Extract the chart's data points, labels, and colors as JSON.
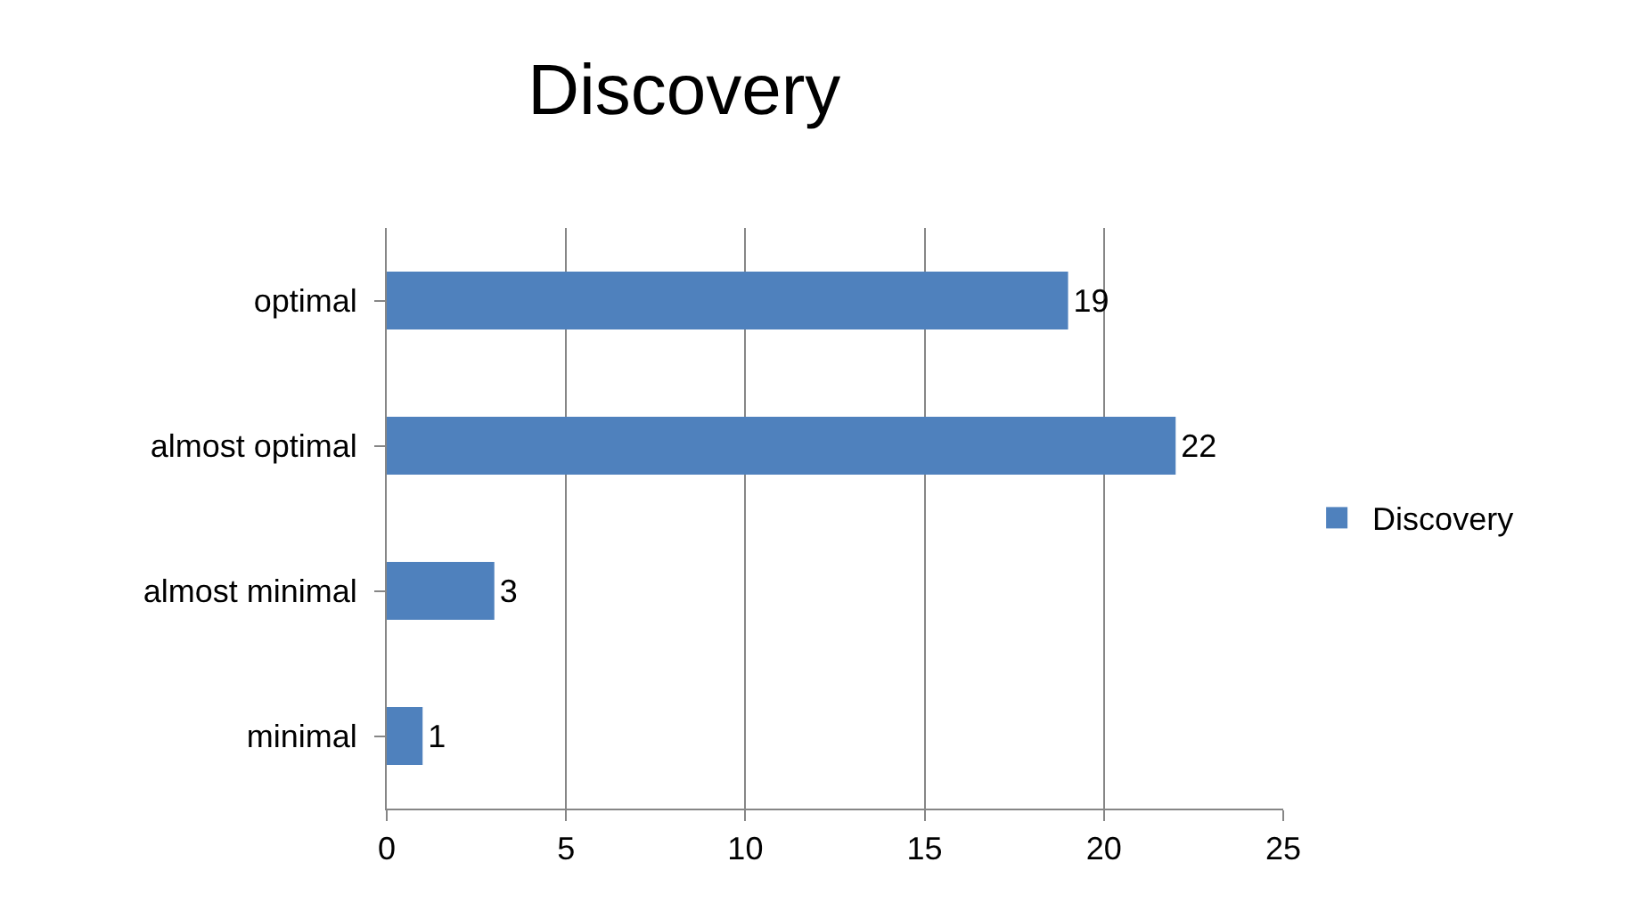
{
  "chart_data": {
    "type": "bar",
    "title": "Discovery",
    "orientation": "horizontal",
    "categories": [
      "optimal",
      "almost optimal",
      "almost minimal",
      "minimal"
    ],
    "series": [
      {
        "name": "Discovery",
        "color": "#4f81bd",
        "values": [
          19,
          22,
          3,
          1
        ]
      }
    ],
    "xlim": [
      0,
      25
    ],
    "xticks": [
      0,
      5,
      10,
      15,
      20,
      25
    ],
    "grid": "x",
    "legend": "right",
    "data_labels": true
  }
}
